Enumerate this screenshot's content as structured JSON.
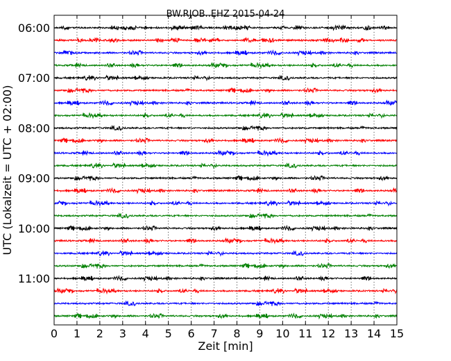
{
  "chart_data": {
    "type": "line",
    "title": "BW.RJOB..EHZ 2015-04-24",
    "xlabel": "Zeit  [min]",
    "ylabel": "UTC (Lokalzeit = UTC + 02:00)",
    "xlim": [
      0,
      15
    ],
    "x_ticks": [
      0,
      1,
      2,
      3,
      4,
      5,
      6,
      7,
      8,
      9,
      10,
      11,
      12,
      13,
      14,
      15
    ],
    "x_tick_labels": [
      "0",
      "1",
      "2",
      "3",
      "4",
      "5",
      "6",
      "7",
      "8",
      "9",
      "10",
      "11",
      "12",
      "13",
      "14",
      "15"
    ],
    "y_ticks": [
      {
        "label": "06:00",
        "value": "06:00"
      },
      {
        "label": "07:00",
        "value": "07:00"
      },
      {
        "label": "08:00",
        "value": "08:00"
      },
      {
        "label": "09:00",
        "value": "09:00"
      },
      {
        "label": "10:00",
        "value": "10:00"
      },
      {
        "label": "11:00",
        "value": "11:00"
      }
    ],
    "x_grid": "dotted vertical lines at each minute",
    "trace_colors": [
      "#000000",
      "#ff0000",
      "#0000ff",
      "#008000"
    ],
    "series": [
      {
        "start": "06:00"
      },
      {
        "start": "06:15"
      },
      {
        "start": "06:30"
      },
      {
        "start": "06:45"
      },
      {
        "start": "07:00"
      },
      {
        "start": "07:15"
      },
      {
        "start": "07:30"
      },
      {
        "start": "07:45"
      },
      {
        "start": "08:00"
      },
      {
        "start": "08:15"
      },
      {
        "start": "08:30"
      },
      {
        "start": "08:45"
      },
      {
        "start": "09:00"
      },
      {
        "start": "09:15"
      },
      {
        "start": "09:30"
      },
      {
        "start": "09:45"
      },
      {
        "start": "10:00"
      },
      {
        "start": "10:15"
      },
      {
        "start": "10:30"
      },
      {
        "start": "10:45"
      },
      {
        "start": "11:00"
      },
      {
        "start": "11:15"
      },
      {
        "start": "11:30"
      },
      {
        "start": "11:45"
      }
    ]
  }
}
